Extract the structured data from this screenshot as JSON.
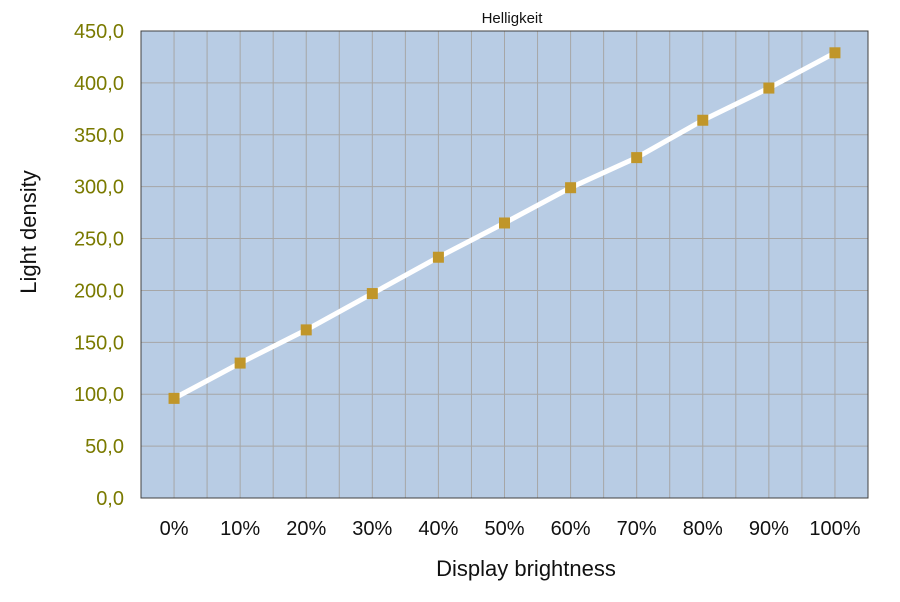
{
  "chart_data": {
    "type": "line",
    "title": "Helligkeit",
    "xlabel": "Display brightness",
    "ylabel": "Light density",
    "categories": [
      "0%",
      "10%",
      "20%",
      "30%",
      "40%",
      "50%",
      "60%",
      "70%",
      "80%",
      "90%",
      "100%"
    ],
    "series": [
      {
        "values": [
          96,
          130,
          162,
          197,
          232,
          265,
          299,
          328,
          364,
          395,
          429
        ]
      }
    ],
    "ylim": [
      0,
      450
    ],
    "yticks": [
      "0,0",
      "50,0",
      "100,0",
      "150,0",
      "200,0",
      "250,0",
      "300,0",
      "350,0",
      "400,0",
      "450,0"
    ],
    "grid": true,
    "legend": "none",
    "colors": {
      "plot_background": "#b8cce4",
      "grid": "#a6a6a6",
      "line": "#ffffff",
      "marker": "#c0962a",
      "ytick_text": "#7a7a00"
    }
  }
}
